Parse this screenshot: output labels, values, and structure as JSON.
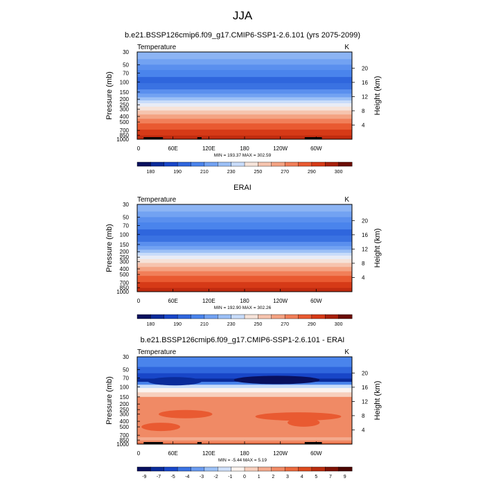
{
  "figure": {
    "title": "JJA"
  },
  "chart_data": [
    {
      "type": "heatmap",
      "title": "b.e21.BSSP126cmip6.f09_g17.CMIP6-SSP1-2.6.101 (yrs 2075-2099)",
      "left_label": "Temperature",
      "right_label": "K",
      "ylabel": "Pressure (mb)",
      "ylabel_right": "Height (km)",
      "x_ticks": [
        "0",
        "60E",
        "120E",
        "180",
        "120W",
        "60W"
      ],
      "y_ticks": [
        "30",
        "50",
        "70",
        "100",
        "150",
        "200",
        "250",
        "300",
        "400",
        "500",
        "700",
        "850",
        "1000"
      ],
      "height_ticks": [
        "20",
        "16",
        "12",
        "8",
        "4"
      ],
      "stats": "MIN = 193.37  MAX = 302.59",
      "colorbar_labels": [
        "180",
        "190",
        "210",
        "230",
        "250",
        "270",
        "290",
        "300"
      ]
    },
    {
      "type": "heatmap",
      "title": "ERAI",
      "left_label": "Temperature",
      "right_label": "K",
      "ylabel": "Pressure (mb)",
      "ylabel_right": "Height (km)",
      "x_ticks": [
        "0",
        "60E",
        "120E",
        "180",
        "120W",
        "60W"
      ],
      "y_ticks": [
        "30",
        "50",
        "70",
        "100",
        "150",
        "200",
        "250",
        "300",
        "400",
        "500",
        "700",
        "850",
        "1000"
      ],
      "height_ticks": [
        "20",
        "16",
        "12",
        "8",
        "4"
      ],
      "stats": "MIN = 192.90  MAX = 302.26",
      "colorbar_labels": [
        "180",
        "190",
        "210",
        "230",
        "250",
        "270",
        "290",
        "300"
      ]
    },
    {
      "type": "heatmap",
      "title": "b.e21.BSSP126cmip6.f09_g17.CMIP6-SSP1-2.6.101 - ERAI",
      "left_label": "Temperature",
      "right_label": "K",
      "ylabel": "Pressure (mb)",
      "ylabel_right": "Height (km)",
      "x_ticks": [
        "0",
        "60E",
        "120E",
        "180",
        "120W",
        "60W"
      ],
      "y_ticks": [
        "30",
        "50",
        "70",
        "100",
        "150",
        "200",
        "250",
        "300",
        "400",
        "500",
        "700",
        "850",
        "1000"
      ],
      "height_ticks": [
        "20",
        "16",
        "12",
        "8",
        "4"
      ],
      "stats": "MIN = -5.44  MAX =  5.19",
      "colorbar_labels": [
        "-9",
        "-7",
        "-5",
        "-4",
        "-3",
        "-2",
        "-1",
        "0",
        "1",
        "2",
        "3",
        "4",
        "5",
        "7",
        "9"
      ]
    }
  ]
}
